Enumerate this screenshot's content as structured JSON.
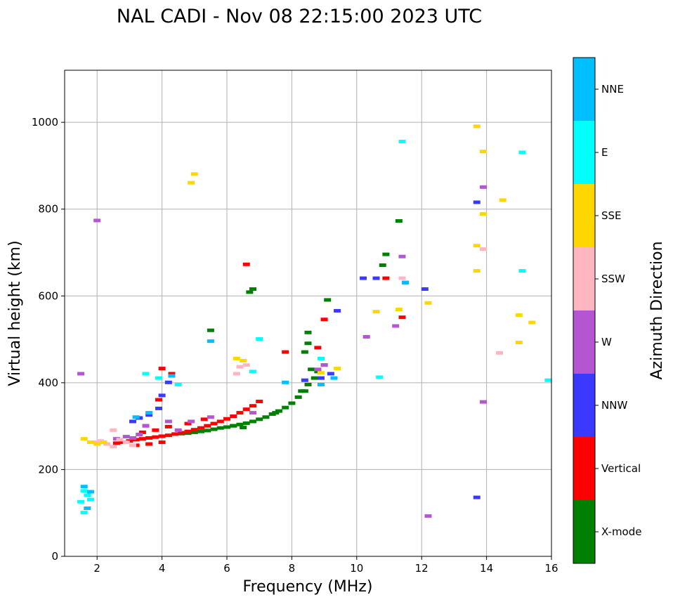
{
  "chart_data": {
    "type": "scatter",
    "title": "NAL CADI - Nov 08 22:15:00 2023 UTC",
    "xlabel": "Frequency (MHz)",
    "ylabel": "Virtual height (km)",
    "xlim": [
      1,
      16
    ],
    "ylim": [
      0,
      1120
    ],
    "xticks": [
      2,
      4,
      6,
      8,
      10,
      12,
      14,
      16
    ],
    "yticks": [
      0,
      200,
      400,
      600,
      800,
      1000
    ],
    "grid": true,
    "colorbar": {
      "title": "Azimuth Direction",
      "categories": [
        {
          "label": "X-mode",
          "color": "#008000"
        },
        {
          "label": "Vertical",
          "color": "#ff0000"
        },
        {
          "label": "NNW",
          "color": "#3a3aff"
        },
        {
          "label": "W",
          "color": "#b455d2"
        },
        {
          "label": "SSW",
          "color": "#ffb6c1"
        },
        {
          "label": "SSE",
          "color": "#ffd700"
        },
        {
          "label": "E",
          "color": "#00ffff"
        },
        {
          "label": "NNE",
          "color": "#00bfff"
        }
      ]
    },
    "series": [
      {
        "name": "X-mode",
        "points": [
          [
            4.6,
            282
          ],
          [
            4.8,
            283
          ],
          [
            5.0,
            285
          ],
          [
            5.2,
            287
          ],
          [
            5.4,
            289
          ],
          [
            5.6,
            292
          ],
          [
            5.8,
            295
          ],
          [
            6.0,
            297
          ],
          [
            6.2,
            300
          ],
          [
            6.4,
            303
          ],
          [
            6.6,
            306
          ],
          [
            6.8,
            310
          ],
          [
            7.0,
            315
          ],
          [
            7.2,
            320
          ],
          [
            7.4,
            327
          ],
          [
            7.6,
            334
          ],
          [
            7.8,
            342
          ],
          [
            8.0,
            352
          ],
          [
            8.2,
            366
          ],
          [
            8.4,
            380
          ],
          [
            8.5,
            395
          ],
          [
            8.7,
            410
          ],
          [
            8.8,
            425
          ],
          [
            9.0,
            440
          ],
          [
            8.5,
            490
          ],
          [
            8.5,
            515
          ],
          [
            9.1,
            590
          ],
          [
            10.8,
            670
          ],
          [
            10.9,
            695
          ],
          [
            11.3,
            772
          ],
          [
            6.8,
            615
          ],
          [
            6.7,
            608
          ],
          [
            5.5,
            520
          ],
          [
            6.2,
            300
          ],
          [
            6.5,
            296
          ],
          [
            7.5,
            330
          ],
          [
            8.3,
            380
          ],
          [
            8.6,
            430
          ],
          [
            8.4,
            470
          ]
        ]
      },
      {
        "name": "Vertical",
        "points": [
          [
            2.6,
            260
          ],
          [
            2.8,
            262
          ],
          [
            3.0,
            265
          ],
          [
            3.2,
            268
          ],
          [
            3.4,
            270
          ],
          [
            3.6,
            272
          ],
          [
            3.8,
            274
          ],
          [
            4.0,
            276
          ],
          [
            4.2,
            278
          ],
          [
            4.4,
            281
          ],
          [
            4.6,
            284
          ],
          [
            4.8,
            287
          ],
          [
            5.0,
            291
          ],
          [
            5.2,
            295
          ],
          [
            5.4,
            300
          ],
          [
            5.6,
            305
          ],
          [
            5.8,
            310
          ],
          [
            6.0,
            316
          ],
          [
            6.2,
            322
          ],
          [
            6.4,
            330
          ],
          [
            6.6,
            338
          ],
          [
            6.8,
            346
          ],
          [
            7.0,
            356
          ],
          [
            3.2,
            255
          ],
          [
            3.6,
            258
          ],
          [
            4.0,
            262
          ],
          [
            3.4,
            285
          ],
          [
            3.8,
            290
          ],
          [
            4.2,
            298
          ],
          [
            4.8,
            305
          ],
          [
            5.3,
            315
          ],
          [
            6.6,
            672
          ],
          [
            9.0,
            545
          ],
          [
            10.9,
            640
          ],
          [
            11.4,
            550
          ],
          [
            4.0,
            432
          ],
          [
            3.9,
            360
          ],
          [
            4.3,
            420
          ],
          [
            7.8,
            470
          ],
          [
            8.8,
            480
          ]
        ]
      },
      {
        "name": "NNW",
        "points": [
          [
            3.1,
            310
          ],
          [
            3.3,
            318
          ],
          [
            3.6,
            325
          ],
          [
            3.9,
            340
          ],
          [
            4.2,
            400
          ],
          [
            4.0,
            370
          ],
          [
            3.5,
            300
          ],
          [
            8.9,
            410
          ],
          [
            9.2,
            420
          ],
          [
            10.2,
            640
          ],
          [
            10.6,
            640
          ],
          [
            11.5,
            630
          ],
          [
            12.1,
            615
          ],
          [
            13.7,
            815
          ],
          [
            13.7,
            135
          ],
          [
            9.4,
            565
          ],
          [
            8.4,
            405
          ]
        ]
      },
      {
        "name": "W",
        "points": [
          [
            2.6,
            270
          ],
          [
            2.9,
            275
          ],
          [
            3.1,
            272
          ],
          [
            3.3,
            280
          ],
          [
            3.5,
            300
          ],
          [
            4.5,
            290
          ],
          [
            4.9,
            310
          ],
          [
            5.5,
            320
          ],
          [
            6.8,
            330
          ],
          [
            8.8,
            430
          ],
          [
            9.0,
            440
          ],
          [
            10.3,
            505
          ],
          [
            11.2,
            530
          ],
          [
            11.4,
            690
          ],
          [
            13.9,
            850
          ],
          [
            13.9,
            355
          ],
          [
            12.2,
            92
          ],
          [
            1.5,
            420
          ],
          [
            2.0,
            773
          ],
          [
            4.2,
            310
          ]
        ]
      },
      {
        "name": "SSW",
        "points": [
          [
            1.9,
            262
          ],
          [
            2.1,
            265
          ],
          [
            2.3,
            258
          ],
          [
            2.5,
            252
          ],
          [
            2.7,
            268
          ],
          [
            2.9,
            262
          ],
          [
            3.1,
            255
          ],
          [
            6.3,
            420
          ],
          [
            6.4,
            436
          ],
          [
            6.6,
            440
          ],
          [
            11.4,
            640
          ],
          [
            14.4,
            468
          ],
          [
            13.9,
            707
          ],
          [
            2.5,
            290
          ]
        ]
      },
      {
        "name": "SSE",
        "points": [
          [
            1.6,
            270
          ],
          [
            1.8,
            262
          ],
          [
            2.0,
            258
          ],
          [
            2.2,
            262
          ],
          [
            5.0,
            880
          ],
          [
            4.9,
            860
          ],
          [
            6.3,
            455
          ],
          [
            6.5,
            450
          ],
          [
            10.6,
            563
          ],
          [
            11.3,
            568
          ],
          [
            12.2,
            583
          ],
          [
            13.7,
            990
          ],
          [
            13.9,
            932
          ],
          [
            13.7,
            715
          ],
          [
            13.7,
            657
          ],
          [
            14.5,
            820
          ],
          [
            13.9,
            788
          ],
          [
            15.0,
            555
          ],
          [
            15.0,
            492
          ],
          [
            15.4,
            538
          ],
          [
            9.4,
            432
          ],
          [
            8.9,
            422
          ]
        ]
      },
      {
        "name": "E",
        "points": [
          [
            1.6,
            150
          ],
          [
            1.7,
            140
          ],
          [
            1.5,
            125
          ],
          [
            1.8,
            130
          ],
          [
            1.6,
            100
          ],
          [
            3.5,
            420
          ],
          [
            3.9,
            410
          ],
          [
            4.5,
            395
          ],
          [
            7.0,
            500
          ],
          [
            11.4,
            955
          ],
          [
            15.1,
            930
          ],
          [
            15.1,
            657
          ],
          [
            15.9,
            405
          ],
          [
            10.7,
            412
          ],
          [
            8.9,
            455
          ],
          [
            6.8,
            425
          ]
        ]
      },
      {
        "name": "NNE",
        "points": [
          [
            1.6,
            160
          ],
          [
            1.8,
            148
          ],
          [
            1.7,
            110
          ],
          [
            3.2,
            320
          ],
          [
            3.6,
            330
          ],
          [
            5.5,
            495
          ],
          [
            9.3,
            410
          ],
          [
            11.5,
            630
          ],
          [
            8.9,
            395
          ],
          [
            4.3,
            415
          ],
          [
            7.8,
            400
          ]
        ]
      }
    ]
  }
}
